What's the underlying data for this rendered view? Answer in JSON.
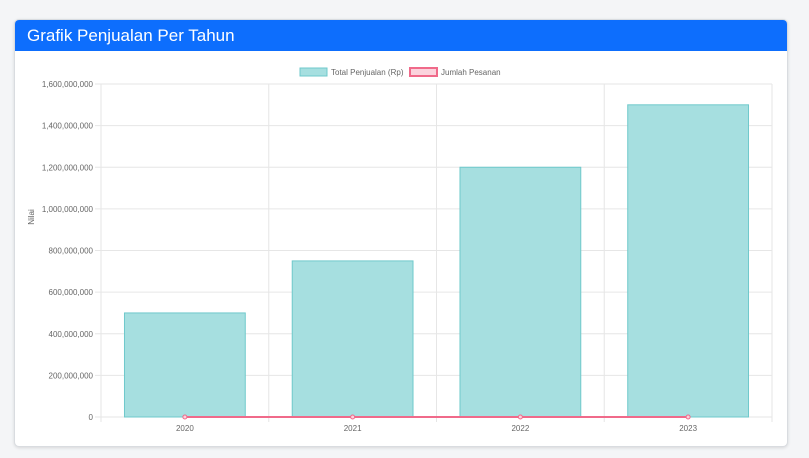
{
  "card": {
    "title": "Grafik Penjualan Per Tahun"
  },
  "chart_data": {
    "type": "bar",
    "categories": [
      "2020",
      "2021",
      "2022",
      "2023"
    ],
    "series": [
      {
        "name": "Total Penjualan (Rp)",
        "kind": "bar",
        "values": [
          500000000,
          750000000,
          1200000000,
          1500000000
        ],
        "fill": "#a6dfe0",
        "stroke": "#6fc9cb"
      },
      {
        "name": "Jumlah Pesanan",
        "kind": "line",
        "values": [
          0,
          0,
          0,
          0
        ],
        "fill": "#fbd3dd",
        "stroke": "#f06a8a"
      }
    ],
    "ylabel": "Nilai",
    "ylim": [
      0,
      1600000000
    ],
    "yticks": [
      "0",
      "200,000,000",
      "400,000,000",
      "600,000,000",
      "800,000,000",
      "1,000,000,000",
      "1,200,000,000",
      "1,400,000,000",
      "1,600,000,000"
    ],
    "grid": true,
    "legend_position": "top"
  }
}
